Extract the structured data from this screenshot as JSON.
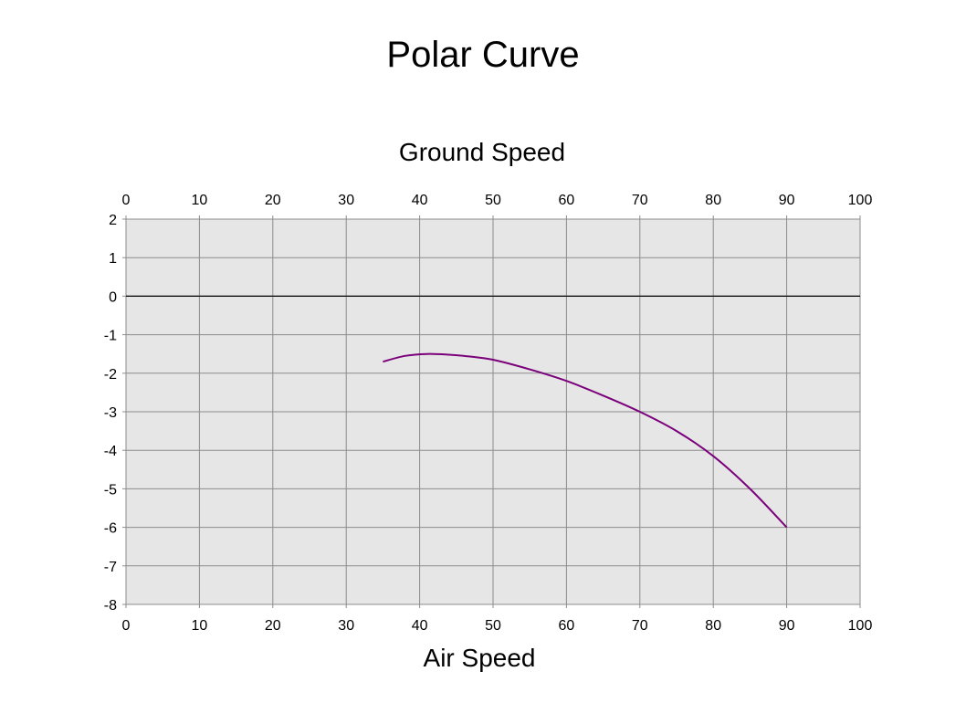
{
  "page": {
    "title": "Polar Curve"
  },
  "chart_data": {
    "type": "line",
    "title": "Polar Curve",
    "x2label": "Ground Speed",
    "xlabel": "Air Speed",
    "ylabel": "",
    "xlim": [
      0,
      100
    ],
    "ylim": [
      -8,
      2
    ],
    "xticks": [
      "0",
      "10",
      "20",
      "30",
      "40",
      "50",
      "60",
      "70",
      "80",
      "90",
      "100"
    ],
    "yticks": [
      "2",
      "1",
      "0",
      "-1",
      "-2",
      "-3",
      "-4",
      "-5",
      "-6",
      "-7",
      "-8"
    ],
    "grid": true,
    "legend": "none",
    "colors": {
      "line": "#7b007b",
      "plot_bg": "#e6e6e6",
      "grid": "#8c8c8c",
      "zero_line": "#000000"
    },
    "series": [
      {
        "x": [
          35,
          38,
          41,
          44,
          47,
          50,
          55,
          60,
          65,
          70,
          75,
          80,
          85,
          90
        ],
        "y": [
          -1.7,
          -1.55,
          -1.5,
          -1.52,
          -1.57,
          -1.65,
          -1.9,
          -2.2,
          -2.58,
          -3.0,
          -3.5,
          -4.15,
          -5.0,
          -6.0
        ]
      }
    ]
  }
}
